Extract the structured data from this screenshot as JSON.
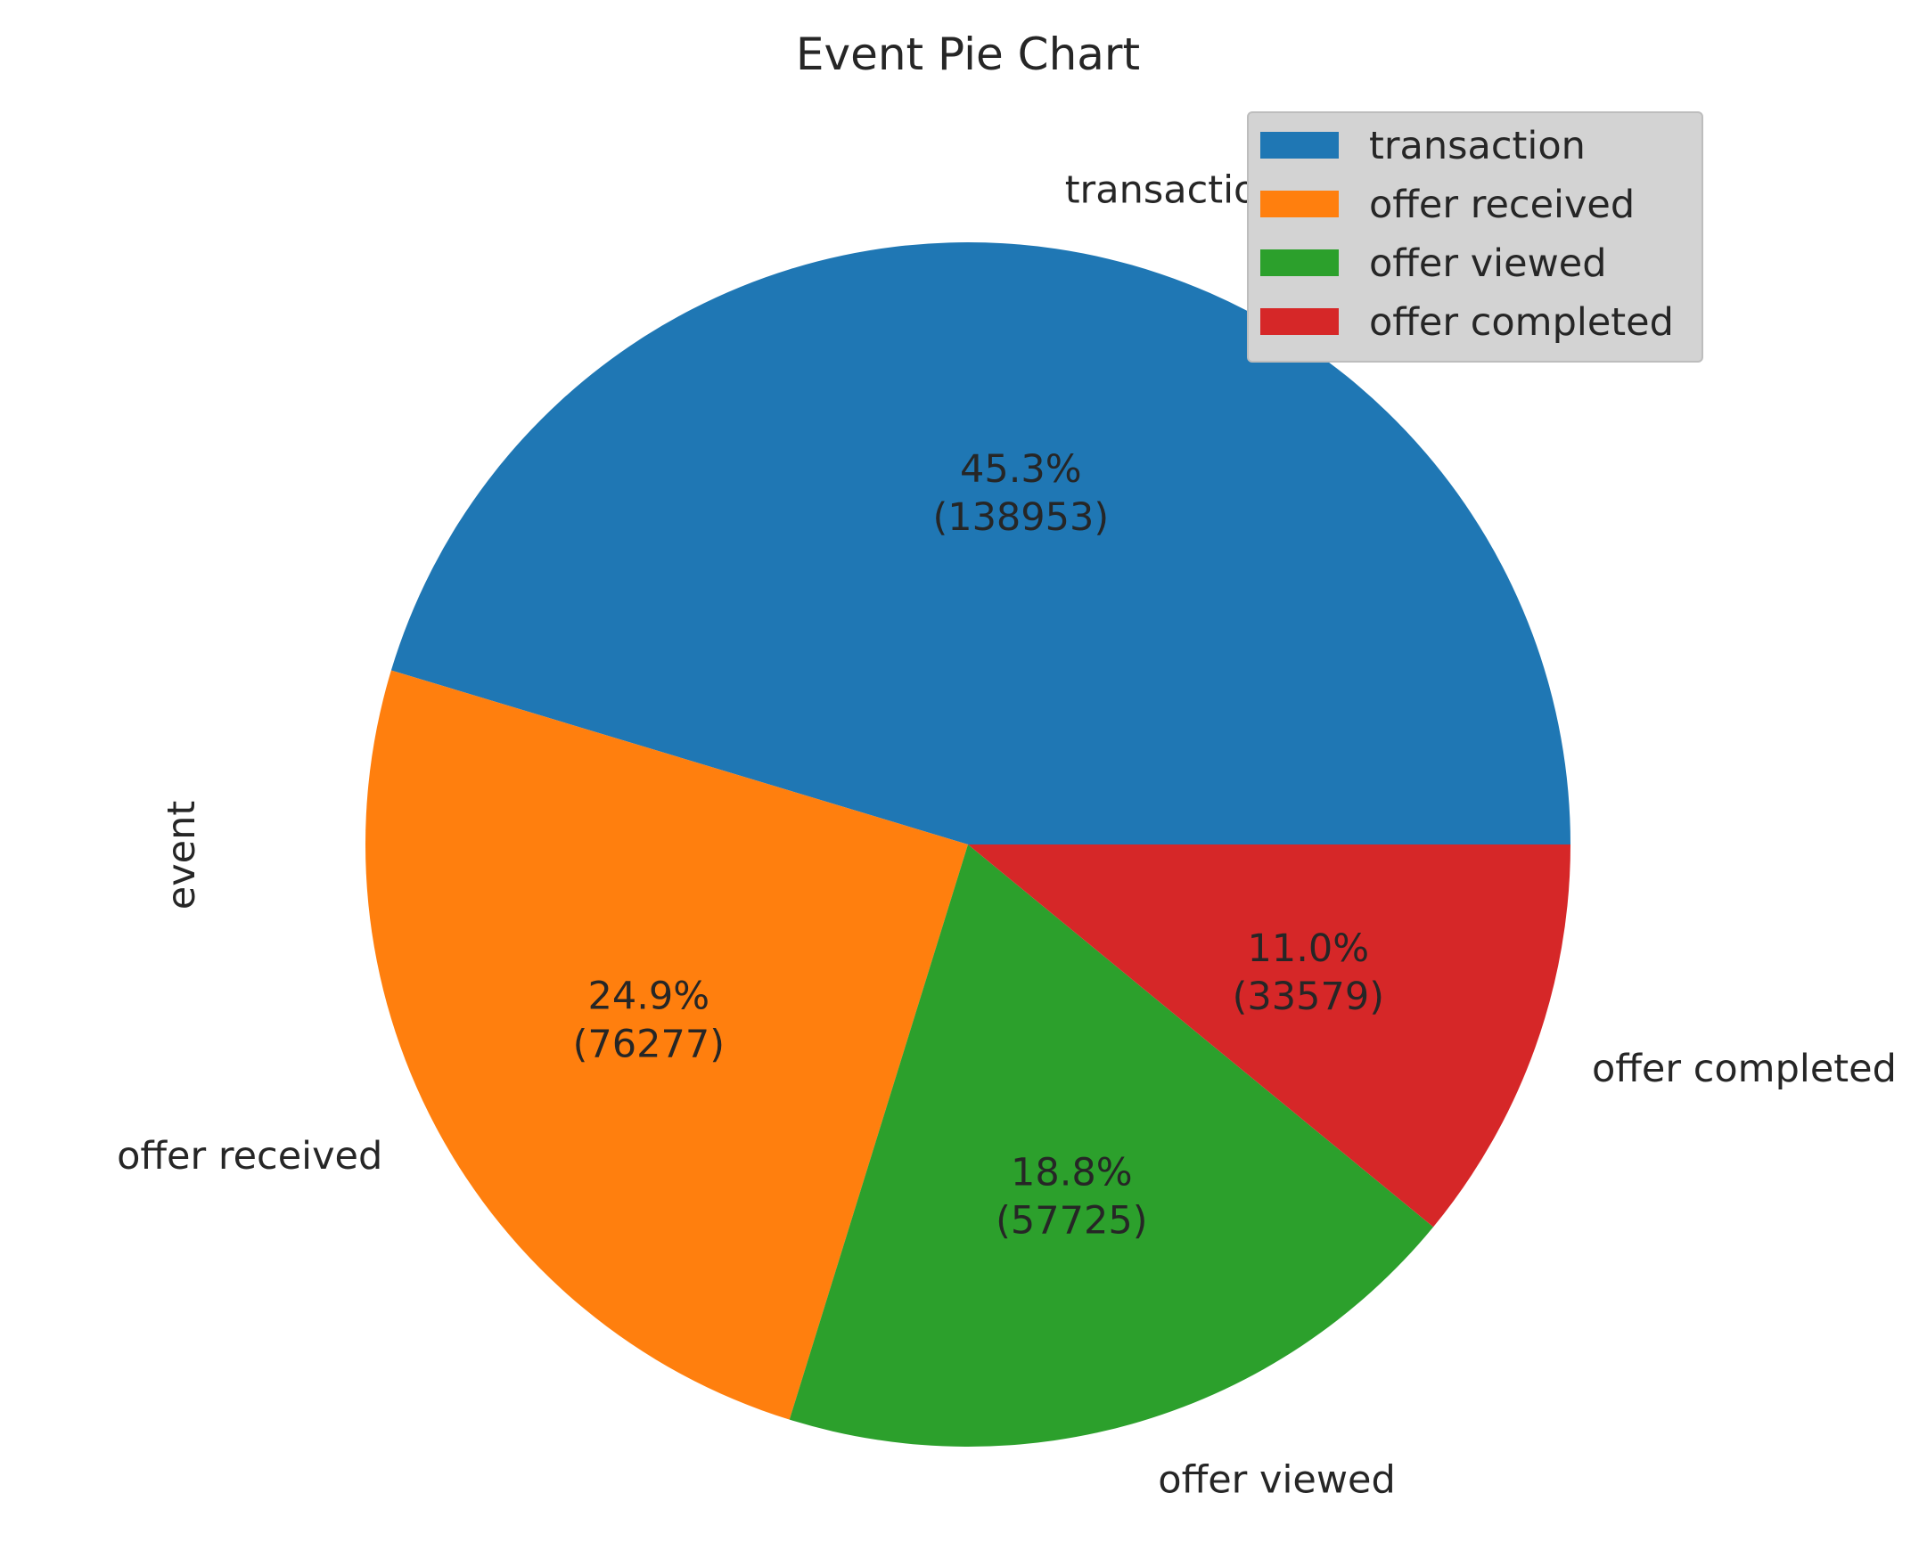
{
  "chart_data": {
    "type": "pie",
    "title": "Event Pie Chart",
    "ylabel": "event",
    "xlabel": "",
    "categories": [
      "transaction",
      "offer received",
      "offer viewed",
      "offer completed"
    ],
    "values": [
      138953,
      76277,
      57725,
      33579
    ],
    "percent_labels": [
      "45.3%",
      "24.9%",
      "18.8%",
      "11.0%"
    ],
    "count_labels": [
      "(138953)",
      "(76277)",
      "(57725)",
      "(33579)"
    ],
    "colors": [
      "#1f77b4",
      "#ff7f0e",
      "#2ca02c",
      "#d62728"
    ],
    "legend": {
      "placement": "upper-right",
      "entries": [
        "transaction",
        "offer received",
        "offer viewed",
        "offer completed"
      ]
    },
    "start_angle": 0,
    "direction": "counterclockwise"
  }
}
